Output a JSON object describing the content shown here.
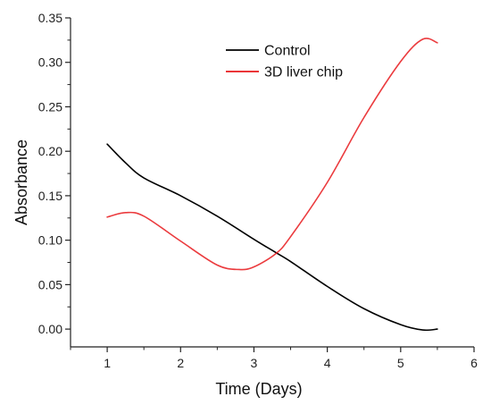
{
  "chart_data": {
    "type": "line",
    "xlabel": "Time (Days)",
    "ylabel": "Absorbance",
    "xlim": [
      0.5,
      6
    ],
    "ylim": [
      -0.02,
      0.35
    ],
    "xticks": [
      1,
      2,
      3,
      4,
      5,
      6
    ],
    "yticks": [
      0.0,
      0.05,
      0.1,
      0.15,
      0.2,
      0.25,
      0.3,
      0.35
    ],
    "ytick_labels": [
      "0.00",
      "0.05",
      "0.10",
      "0.15",
      "0.20",
      "0.25",
      "0.30",
      "0.35"
    ],
    "grid": false,
    "legend_position": "top-center",
    "series": [
      {
        "name": "Control",
        "color": "#000000",
        "x": [
          1.0,
          1.25,
          1.5,
          2.0,
          2.5,
          3.0,
          3.3,
          3.5,
          4.0,
          4.5,
          5.0,
          5.3,
          5.5
        ],
        "values": [
          0.208,
          0.187,
          0.17,
          0.15,
          0.127,
          0.101,
          0.086,
          0.076,
          0.048,
          0.023,
          0.005,
          -0.001,
          0.0
        ]
      },
      {
        "name": "3D liver chip",
        "color": "#e8191c",
        "x": [
          1.0,
          1.25,
          1.5,
          2.0,
          2.5,
          2.8,
          3.0,
          3.3,
          3.5,
          4.0,
          4.5,
          5.0,
          5.3,
          5.5
        ],
        "values": [
          0.126,
          0.131,
          0.127,
          0.099,
          0.072,
          0.067,
          0.07,
          0.085,
          0.104,
          0.165,
          0.238,
          0.301,
          0.326,
          0.322
        ]
      }
    ]
  }
}
